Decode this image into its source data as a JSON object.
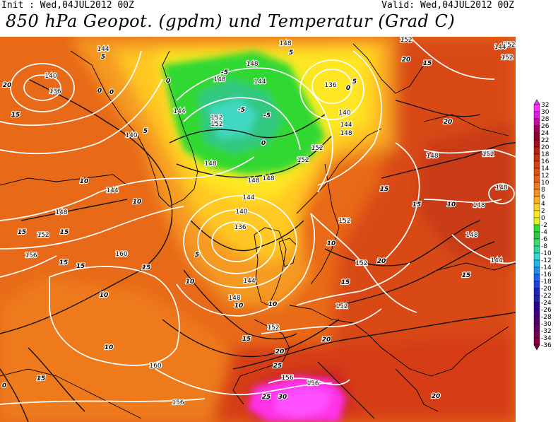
{
  "header": {
    "init": "Init : Wed,04JUL2012 00Z",
    "valid": "Valid: Wed,04JUL2012 00Z",
    "title": "850 hPa Geopot. (gpdm) und Temperatur (Grad C)"
  },
  "colorbar": {
    "levels": [
      "32",
      "30",
      "28",
      "26",
      "24",
      "22",
      "20",
      "18",
      "16",
      "14",
      "12",
      "10",
      "8",
      "6",
      "4",
      "2",
      "0",
      "-2",
      "-4",
      "-6",
      "-8",
      "-10",
      "-12",
      "-14",
      "-16",
      "-18",
      "-20",
      "-22",
      "-24",
      "-26",
      "-28",
      "-30",
      "-32",
      "-34",
      "-36"
    ],
    "colors": [
      "#ff30ff",
      "#e020e0",
      "#c010a0",
      "#a00060",
      "#880030",
      "#a01020",
      "#b82010",
      "#c83010",
      "#d84010",
      "#e05010",
      "#e86018",
      "#f07818",
      "#f89020",
      "#ffb020",
      "#ffd020",
      "#ffe820",
      "#e8f020",
      "#30e030",
      "#30c840",
      "#40d870",
      "#30d8a0",
      "#30d8d8",
      "#20b8e8",
      "#2090f0",
      "#2060f0",
      "#2040e0",
      "#2020c0",
      "#2020a0",
      "#300090",
      "#400080",
      "#500070",
      "#600060",
      "#700050",
      "#800040"
    ]
  },
  "isohypse_labels": [
    {
      "id": "g1",
      "text": "144"
    },
    {
      "id": "g2",
      "text": "140"
    },
    {
      "id": "g3",
      "text": "136"
    },
    {
      "id": "g4",
      "text": "140"
    },
    {
      "id": "g5",
      "text": "144"
    },
    {
      "id": "g6",
      "text": "148"
    },
    {
      "id": "g7",
      "text": "152"
    },
    {
      "id": "g8",
      "text": "152"
    },
    {
      "id": "g9",
      "text": "148"
    },
    {
      "id": "g10",
      "text": "144"
    },
    {
      "id": "g11",
      "text": "148"
    },
    {
      "id": "g12",
      "text": "152"
    },
    {
      "id": "g13",
      "text": "156"
    },
    {
      "id": "g14",
      "text": "160"
    },
    {
      "id": "g15",
      "text": "144"
    },
    {
      "id": "g16",
      "text": "140"
    },
    {
      "id": "g17",
      "text": "136"
    },
    {
      "id": "g18",
      "text": "144"
    },
    {
      "id": "g19",
      "text": "148"
    },
    {
      "id": "g20",
      "text": "152"
    },
    {
      "id": "g21",
      "text": "160"
    },
    {
      "id": "g22",
      "text": "156"
    },
    {
      "id": "g23",
      "text": "156"
    },
    {
      "id": "g24",
      "text": "156"
    },
    {
      "id": "g25",
      "text": "152"
    },
    {
      "id": "g26",
      "text": "152"
    },
    {
      "id": "g27",
      "text": "152"
    },
    {
      "id": "g28",
      "text": "148"
    },
    {
      "id": "g29",
      "text": "144"
    },
    {
      "id": "g30",
      "text": "148"
    },
    {
      "id": "g31",
      "text": "152"
    },
    {
      "id": "g32",
      "text": "136"
    },
    {
      "id": "g33",
      "text": "140"
    },
    {
      "id": "g34",
      "text": "144"
    },
    {
      "id": "g35",
      "text": "148"
    },
    {
      "id": "g36",
      "text": "152"
    },
    {
      "id": "g37",
      "text": "148"
    },
    {
      "id": "g38",
      "text": "148"
    },
    {
      "id": "g39",
      "text": "152"
    },
    {
      "id": "g40",
      "text": "148"
    },
    {
      "id": "g41",
      "text": "144"
    },
    {
      "id": "g42",
      "text": "148"
    },
    {
      "id": "g43",
      "text": "152"
    },
    {
      "id": "g44",
      "text": "144"
    },
    {
      "id": "g45",
      "text": "148"
    },
    {
      "id": "g46",
      "text": "152"
    },
    {
      "id": "g47",
      "text": "148"
    },
    {
      "id": "g48",
      "text": "152"
    }
  ],
  "isotherm_labels": [
    {
      "id": "t1",
      "text": "20"
    },
    {
      "id": "t2",
      "text": "15"
    },
    {
      "id": "t3",
      "text": "10"
    },
    {
      "id": "t4",
      "text": "10"
    },
    {
      "id": "t5",
      "text": "15"
    },
    {
      "id": "t6",
      "text": "15"
    },
    {
      "id": "t7",
      "text": "15"
    },
    {
      "id": "t8",
      "text": "15"
    },
    {
      "id": "t9",
      "text": "15"
    },
    {
      "id": "t10",
      "text": "10"
    },
    {
      "id": "t11",
      "text": "10"
    },
    {
      "id": "t12",
      "text": "15"
    },
    {
      "id": "t13",
      "text": "0"
    },
    {
      "id": "t14",
      "text": "5"
    },
    {
      "id": "t15",
      "text": "0"
    },
    {
      "id": "t16",
      "text": "-5"
    },
    {
      "id": "t17",
      "text": "-5"
    },
    {
      "id": "t18",
      "text": "-5"
    },
    {
      "id": "t19",
      "text": "0"
    },
    {
      "id": "t20",
      "text": "5"
    },
    {
      "id": "t21",
      "text": "5"
    },
    {
      "id": "t22",
      "text": "10"
    },
    {
      "id": "t23",
      "text": "10"
    },
    {
      "id": "t24",
      "text": "10"
    },
    {
      "id": "t25",
      "text": "15"
    },
    {
      "id": "t26",
      "text": "20"
    },
    {
      "id": "t27",
      "text": "20"
    },
    {
      "id": "t28",
      "text": "25"
    },
    {
      "id": "t29",
      "text": "30"
    },
    {
      "id": "t30",
      "text": "25"
    },
    {
      "id": "t31",
      "text": "20"
    },
    {
      "id": "t32",
      "text": "20"
    },
    {
      "id": "t33",
      "text": "15"
    },
    {
      "id": "t34",
      "text": "10"
    },
    {
      "id": "t35",
      "text": "15"
    },
    {
      "id": "t36",
      "text": "20"
    },
    {
      "id": "t37",
      "text": "15"
    },
    {
      "id": "t38",
      "text": "10"
    },
    {
      "id": "t39",
      "text": "15"
    },
    {
      "id": "t40",
      "text": "0"
    },
    {
      "id": "t41",
      "text": "0"
    },
    {
      "id": "t42",
      "text": "5"
    },
    {
      "id": "t43",
      "text": "0"
    },
    {
      "id": "t44",
      "text": "5"
    },
    {
      "id": "t45",
      "text": "15"
    },
    {
      "id": "t46",
      "text": "20"
    }
  ]
}
